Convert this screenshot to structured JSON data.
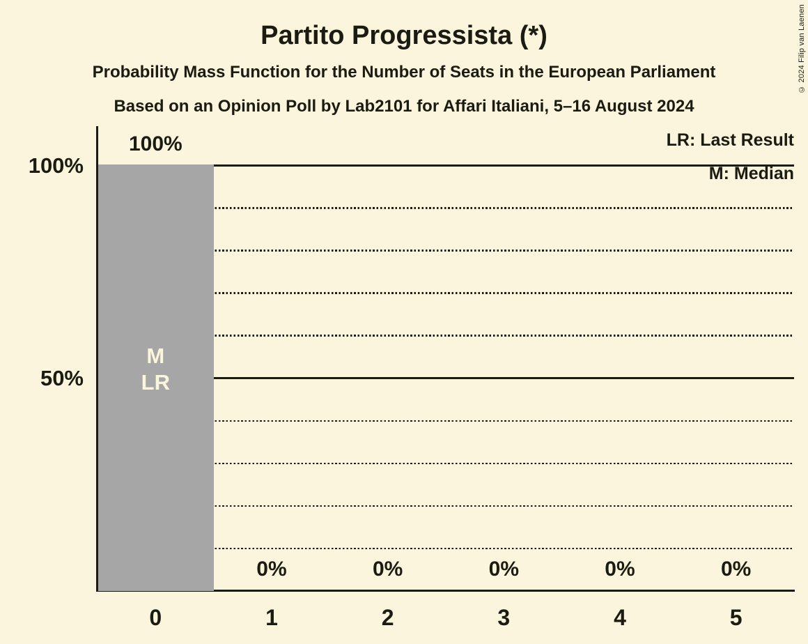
{
  "header": {
    "title": "Partito Progressista (*)",
    "subtitle1": "Probability Mass Function for the Number of Seats in the European Parliament",
    "subtitle2": "Based on an Opinion Poll by Lab2101 for Affari Italiani, 5–16 August 2024"
  },
  "copyright": "© 2024 Filip van Laenen",
  "legend": {
    "lr": "LR: Last Result",
    "m": "M: Median"
  },
  "chart_data": {
    "type": "bar",
    "title": "Partito Progressista (*)",
    "categories": [
      "0",
      "1",
      "2",
      "3",
      "4",
      "5"
    ],
    "values": [
      100,
      0,
      0,
      0,
      0,
      0
    ],
    "value_labels": [
      "100%",
      "0%",
      "0%",
      "0%",
      "0%",
      "0%"
    ],
    "xlabel": "",
    "ylabel": "",
    "ylim": [
      0,
      100
    ],
    "yticks": [
      {
        "value": 100,
        "label": "100%"
      },
      {
        "value": 50,
        "label": "50%"
      }
    ],
    "gridlines": {
      "solid": [
        100,
        50
      ],
      "dotted": [
        90,
        80,
        70,
        60,
        40,
        30,
        20,
        10
      ]
    },
    "legend_position": "top-right",
    "bar_annotations": [
      {
        "bar_index": 0,
        "lines": [
          "M",
          "LR"
        ]
      }
    ],
    "colors": {
      "background": "#faf5dc",
      "bar": "#a6a6a6",
      "text": "#1b1b12",
      "bar_label_text": "#faf5dc"
    }
  }
}
